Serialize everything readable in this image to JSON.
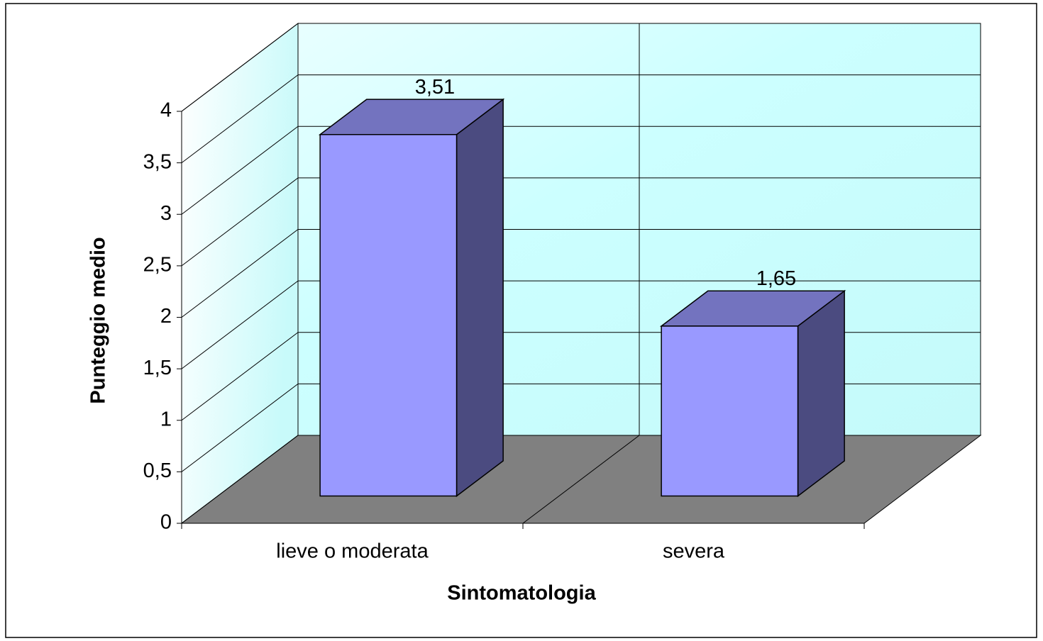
{
  "chart_data": {
    "type": "bar",
    "categories": [
      "lieve o moderata",
      "severa"
    ],
    "values": [
      3.51,
      1.65
    ],
    "value_labels": [
      "3,51",
      "1,65"
    ],
    "color": "#9999ff",
    "xlabel": "Sintomatologia",
    "ylabel": "Punteggio medio",
    "ylim": [
      0,
      4
    ],
    "yticks": [
      0,
      {
        "value": 0.5,
        "label": "0,5"
      },
      1,
      {
        "value": 1.5,
        "label": "1,5"
      },
      2,
      {
        "value": 2.5,
        "label": "2,5"
      },
      3,
      {
        "value": 3.5,
        "label": "3,5"
      },
      4
    ],
    "grid": true
  }
}
